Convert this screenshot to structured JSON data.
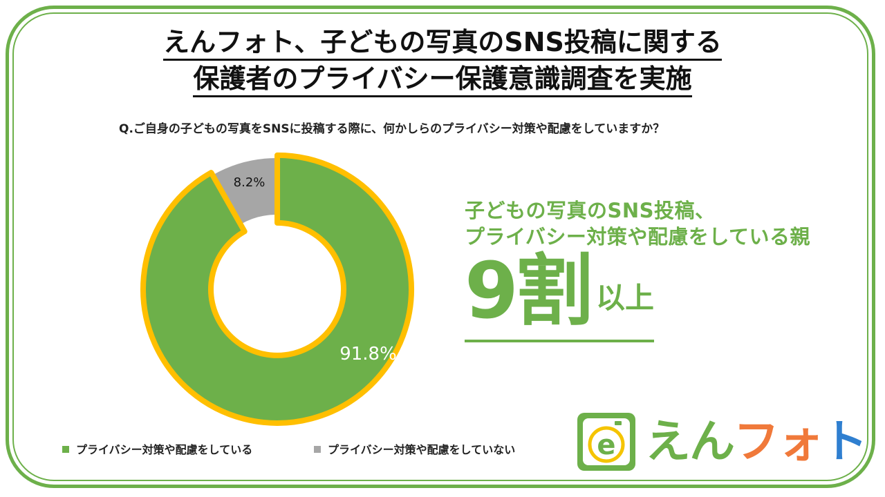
{
  "title": {
    "line1": "えんフォト、子どもの写真のSNS投稿に関する",
    "line2": "保護者のプライバシー保護意識調査を実施"
  },
  "question": "Q.ご自身の子どもの写真をSNSに投稿する際に、何かしらのプライバシー対策や配慮をしていますか？",
  "chart_data": {
    "type": "pie",
    "donut": true,
    "slices": [
      {
        "name": "プライバシー対策や配慮をしている",
        "value": 91.8,
        "label": "91.8%",
        "color": "#6db04a",
        "highlighted": true
      },
      {
        "name": "プライバシー対策や配慮をしていない",
        "value": 8.2,
        "label": "8.2%",
        "color": "#a6a6a6",
        "highlighted": false
      }
    ],
    "highlight_color": "#ffbf00",
    "legend_position": "bottom"
  },
  "headline": {
    "line1": "子どもの写真のSNS投稿、",
    "line2": "プライバシー対策や配慮をしている親",
    "big_number": "9割",
    "big_suffix": "以上"
  },
  "logo": {
    "text_e": "え",
    "text_n": "ん",
    "text_fu": "フ",
    "text_o": "ォ",
    "text_to": "ト",
    "icon_letter": "e",
    "colors": {
      "green": "#6db04a",
      "orange": "#f0793a",
      "yellow": "#f5c400",
      "blue": "#2f7fd0"
    }
  },
  "colors": {
    "accent": "#6db04a",
    "gray": "#a6a6a6",
    "outline": "#ffbf00"
  }
}
